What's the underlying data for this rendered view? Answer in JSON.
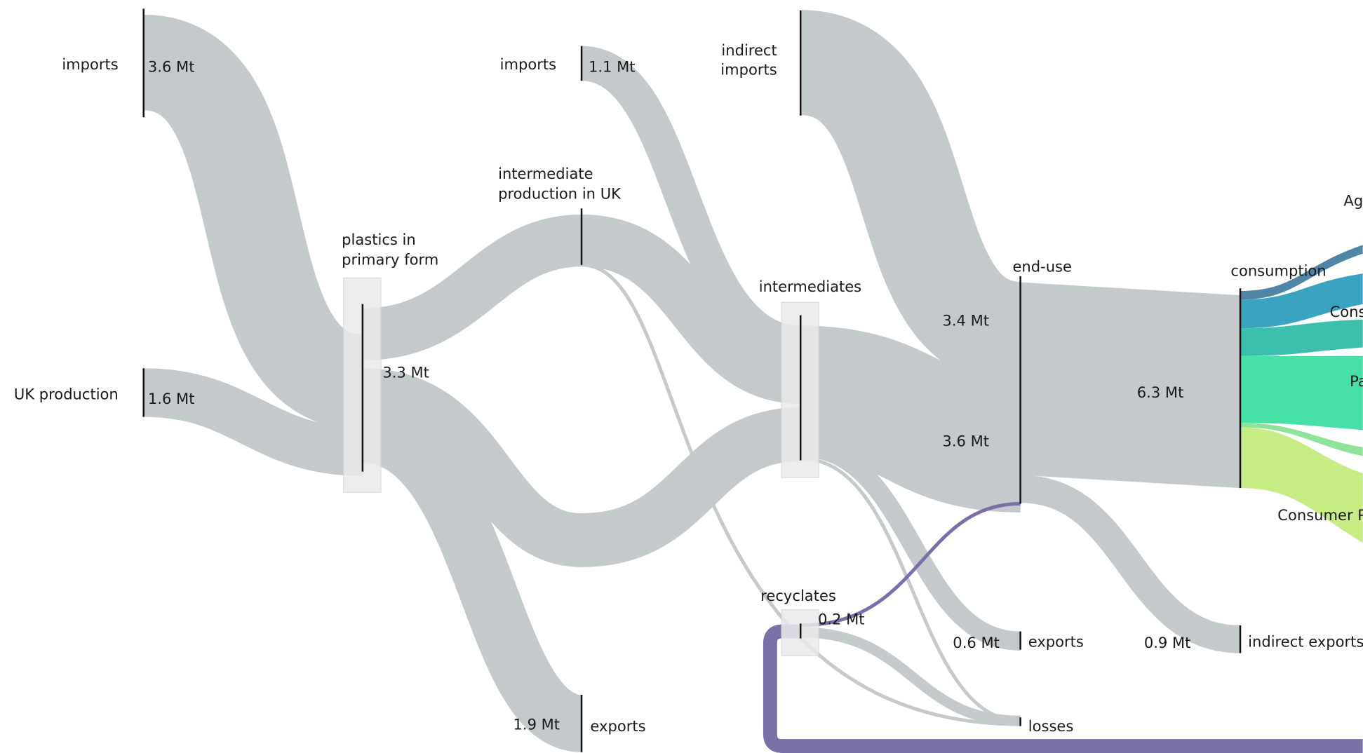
{
  "nodes": [
    {
      "label": "imports",
      "value": "3.6 Mt"
    },
    {
      "label": "UK production",
      "value": "1.6 Mt"
    },
    {
      "label": [
        "plastics in",
        "primary form"
      ],
      "value": "3.3 Mt"
    },
    {
      "label": "imports",
      "value": "1.1 Mt"
    },
    {
      "label": [
        "intermediate",
        "production in UK"
      ]
    },
    {
      "label": [
        "indirect",
        "imports"
      ]
    },
    {
      "label": "intermediates"
    },
    {
      "label": "end-use",
      "values": [
        "3.4 Mt",
        "3.6 Mt"
      ]
    },
    {
      "label": "consumption",
      "value": "6.3 Mt"
    },
    {
      "label": "recyclates",
      "value": "0.2 Mt"
    },
    {
      "label": "exports",
      "value": "0.6 Mt"
    },
    {
      "label": "indirect exports",
      "value": "0.9 Mt"
    },
    {
      "label": "losses"
    },
    {
      "label": "exports",
      "value": "1.9 Mt"
    }
  ],
  "sectors": [
    "Ag",
    "Cons",
    "Pa",
    "Consumer P"
  ]
}
